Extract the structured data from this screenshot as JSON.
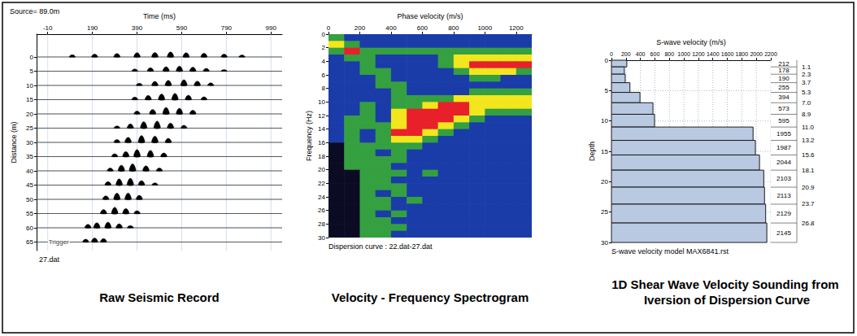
{
  "chart_data": [
    {
      "type": "wiggle",
      "title": "Raw Seismic Record",
      "xlabel": "Time (ms)",
      "ylabel": "Distance (m)",
      "annotations": [
        {
          "text": "Source= 89.0m"
        },
        {
          "text": "Trigger",
          "x": -10,
          "y": 65
        },
        {
          "text": "27.dat"
        }
      ],
      "xlim": [
        -60,
        1040
      ],
      "xticks": [
        -10,
        190,
        390,
        590,
        790,
        990
      ],
      "ylim": [
        -8,
        68
      ],
      "yticks": [
        0,
        5,
        10,
        15,
        20,
        25,
        30,
        35,
        40,
        45,
        50,
        55,
        60,
        65
      ],
      "grid": true,
      "color": "#000000",
      "traces": [
        {
          "distance": 0,
          "peaks": [
            [
              100,
              0.8
            ],
            [
              200,
              1
            ],
            [
              300,
              1.2
            ],
            [
              390,
              1.5
            ],
            [
              470,
              1.6
            ],
            [
              540,
              1.8
            ],
            [
              610,
              1.5
            ],
            [
              690,
              1.3
            ],
            [
              780,
              1
            ],
            [
              860,
              0.7
            ]
          ]
        },
        {
          "distance": 5,
          "peaks": [
            [
              380,
              0.8
            ],
            [
              450,
              1.2
            ],
            [
              520,
              1.6
            ],
            [
              580,
              1.8
            ],
            [
              640,
              1.4
            ],
            [
              700,
              1
            ],
            [
              780,
              0.6
            ]
          ]
        },
        {
          "distance": 10,
          "peaks": [
            [
              400,
              0.8
            ],
            [
              470,
              1.4
            ],
            [
              530,
              1.8
            ],
            [
              600,
              2
            ],
            [
              660,
              1.5
            ],
            [
              720,
              0.9
            ]
          ]
        },
        {
          "distance": 15,
          "peaks": [
            [
              380,
              0.9
            ],
            [
              440,
              1.5
            ],
            [
              500,
              2
            ],
            [
              560,
              2.2
            ],
            [
              620,
              1.6
            ],
            [
              690,
              1
            ]
          ]
        },
        {
          "distance": 20,
          "peaks": [
            [
              390,
              1
            ],
            [
              460,
              1.6
            ],
            [
              520,
              2.3
            ],
            [
              580,
              2
            ],
            [
              640,
              1.3
            ]
          ]
        },
        {
          "distance": 25,
          "peaks": [
            [
              300,
              0.8
            ],
            [
              360,
              1.5
            ],
            [
              420,
              2.3
            ],
            [
              480,
              2.5
            ],
            [
              540,
              1.8
            ],
            [
              600,
              1
            ]
          ]
        },
        {
          "distance": 30,
          "peaks": [
            [
              300,
              1
            ],
            [
              350,
              1.8
            ],
            [
              410,
              2.4
            ],
            [
              470,
              2.2
            ],
            [
              530,
              1.4
            ]
          ]
        },
        {
          "distance": 35,
          "peaks": [
            [
              290,
              1
            ],
            [
              340,
              1.8
            ],
            [
              390,
              2.5
            ],
            [
              450,
              2.2
            ],
            [
              510,
              1.3
            ]
          ]
        },
        {
          "distance": 40,
          "peaks": [
            [
              270,
              1
            ],
            [
              320,
              2
            ],
            [
              370,
              2.5
            ],
            [
              430,
              1.8
            ],
            [
              490,
              1
            ]
          ]
        },
        {
          "distance": 45,
          "peaks": [
            [
              260,
              1.2
            ],
            [
              310,
              2.2
            ],
            [
              360,
              2.4
            ],
            [
              410,
              1.6
            ],
            [
              470,
              0.8
            ]
          ]
        },
        {
          "distance": 50,
          "peaks": [
            [
              250,
              1.2
            ],
            [
              300,
              2.2
            ],
            [
              350,
              2.2
            ],
            [
              400,
              1.4
            ]
          ]
        },
        {
          "distance": 55,
          "peaks": [
            [
              240,
              1.4
            ],
            [
              290,
              2.2
            ],
            [
              340,
              1.8
            ],
            [
              390,
              1
            ]
          ]
        },
        {
          "distance": 60,
          "peaks": [
            [
              170,
              1.2
            ],
            [
              210,
              1.8
            ],
            [
              260,
              2
            ],
            [
              310,
              1.4
            ],
            [
              360,
              0.8
            ]
          ]
        },
        {
          "distance": 65,
          "peaks": [
            [
              160,
              1
            ],
            [
              200,
              1.4
            ],
            [
              240,
              1.2
            ]
          ]
        }
      ]
    },
    {
      "type": "heatmap",
      "title": "Velocity - Frequency Spectrogram",
      "xlabel": "Phase velocity (m/s)",
      "ylabel": "Frequency (Hz)",
      "annotations": [
        {
          "text": "Dispersion curve : 22.dat-27.dat"
        }
      ],
      "xlim": [
        0,
        1300
      ],
      "xticks": [
        0,
        200,
        400,
        600,
        800,
        1000,
        1200
      ],
      "ylim": [
        0,
        30
      ],
      "yticks": [
        0,
        2,
        4,
        6,
        8,
        10,
        12,
        14,
        16,
        18,
        20,
        22,
        24,
        26,
        28,
        30
      ],
      "x_bins": [
        0,
        100,
        200,
        300,
        400,
        500,
        600,
        700,
        800,
        900,
        1000,
        1100,
        1200,
        1300
      ],
      "y_bins": [
        0,
        1,
        2,
        3,
        4,
        5,
        6,
        7,
        8,
        9,
        10,
        11,
        12,
        13,
        14,
        15,
        16,
        17,
        18,
        19,
        20,
        21,
        22,
        23,
        24,
        25,
        26,
        27,
        28,
        29,
        30
      ],
      "color_range": [
        0,
        4
      ],
      "colors": [
        "#0b0b24",
        "#1a3ca8",
        "#35a040",
        "#f4e61c",
        "#e8202a"
      ],
      "cells": [
        [
          2,
          1,
          1,
          1,
          1,
          1,
          1,
          1,
          1,
          1,
          1,
          1,
          1
        ],
        [
          3,
          2,
          1,
          1,
          1,
          1,
          1,
          1,
          1,
          1,
          1,
          1,
          1
        ],
        [
          2,
          4,
          2,
          2,
          2,
          2,
          2,
          2,
          2,
          2,
          2,
          2,
          2
        ],
        [
          1,
          2,
          2,
          1,
          1,
          1,
          1,
          2,
          3,
          3,
          3,
          3,
          3
        ],
        [
          1,
          1,
          2,
          1,
          1,
          1,
          1,
          2,
          3,
          4,
          4,
          4,
          4
        ],
        [
          1,
          1,
          2,
          2,
          1,
          1,
          1,
          1,
          2,
          3,
          3,
          3,
          2
        ],
        [
          1,
          1,
          1,
          2,
          1,
          1,
          1,
          1,
          1,
          2,
          2,
          1,
          1
        ],
        [
          1,
          1,
          1,
          2,
          2,
          1,
          1,
          1,
          1,
          1,
          1,
          1,
          1
        ],
        [
          1,
          1,
          1,
          1,
          2,
          1,
          1,
          1,
          1,
          2,
          2,
          2,
          2
        ],
        [
          1,
          1,
          1,
          1,
          2,
          2,
          2,
          2,
          3,
          3,
          3,
          3,
          3
        ],
        [
          1,
          1,
          2,
          1,
          2,
          2,
          3,
          4,
          4,
          3,
          3,
          3,
          3
        ],
        [
          1,
          1,
          2,
          1,
          3,
          4,
          4,
          4,
          4,
          3,
          2,
          2,
          2
        ],
        [
          1,
          2,
          2,
          1,
          3,
          4,
          4,
          4,
          3,
          2,
          1,
          1,
          1
        ],
        [
          1,
          2,
          2,
          2,
          3,
          4,
          4,
          3,
          2,
          1,
          1,
          1,
          1
        ],
        [
          1,
          2,
          1,
          2,
          4,
          4,
          3,
          2,
          1,
          1,
          1,
          1,
          1
        ],
        [
          1,
          2,
          1,
          2,
          3,
          3,
          2,
          1,
          1,
          1,
          1,
          1,
          1
        ],
        [
          0,
          2,
          2,
          2,
          2,
          2,
          1,
          1,
          1,
          1,
          1,
          1,
          1
        ],
        [
          0,
          2,
          2,
          1,
          2,
          1,
          1,
          1,
          1,
          1,
          1,
          1,
          1
        ],
        [
          0,
          2,
          2,
          2,
          2,
          1,
          1,
          1,
          1,
          1,
          1,
          1,
          1
        ],
        [
          0,
          2,
          2,
          2,
          1,
          1,
          1,
          1,
          1,
          1,
          1,
          1,
          1
        ],
        [
          0,
          0,
          2,
          2,
          2,
          1,
          2,
          1,
          1,
          1,
          1,
          1,
          1
        ],
        [
          0,
          0,
          2,
          2,
          1,
          1,
          1,
          1,
          1,
          1,
          1,
          1,
          1
        ],
        [
          0,
          0,
          2,
          2,
          2,
          1,
          1,
          1,
          1,
          1,
          1,
          1,
          1
        ],
        [
          0,
          0,
          2,
          1,
          2,
          1,
          1,
          1,
          1,
          1,
          1,
          1,
          1
        ],
        [
          0,
          0,
          2,
          2,
          1,
          2,
          1,
          1,
          1,
          1,
          1,
          1,
          1
        ],
        [
          0,
          0,
          2,
          2,
          1,
          1,
          1,
          1,
          1,
          1,
          1,
          1,
          1
        ],
        [
          0,
          0,
          2,
          1,
          2,
          1,
          1,
          1,
          1,
          1,
          1,
          1,
          1
        ],
        [
          0,
          0,
          2,
          2,
          1,
          1,
          1,
          1,
          1,
          1,
          1,
          1,
          1
        ],
        [
          0,
          0,
          2,
          2,
          2,
          1,
          1,
          1,
          1,
          1,
          1,
          1,
          1
        ],
        [
          0,
          0,
          2,
          2,
          1,
          1,
          1,
          1,
          1,
          1,
          1,
          1,
          1
        ]
      ]
    },
    {
      "type": "step_bar",
      "orientation": "horizontal",
      "title": "1D Shear Wave Velocity Sounding from Iversion of Dispersion Curve",
      "xlabel": "S-wave velocity (m/s)",
      "ylabel": "Depth",
      "annotations": [
        {
          "text": "S-wave velocity model MAX6841.rst"
        }
      ],
      "xlim": [
        0,
        2200
      ],
      "xticks": [
        0,
        200,
        400,
        600,
        800,
        1000,
        1200,
        1400,
        1600,
        1800,
        2000,
        2200
      ],
      "ylim": [
        0,
        30
      ],
      "yticks": [
        0,
        5,
        10,
        15,
        20,
        25,
        30
      ],
      "grid": true,
      "color": "#b9c9e2",
      "data_labels": true,
      "values": [
        212,
        178,
        190,
        255,
        394,
        573,
        595,
        1955,
        1987,
        2044,
        2103,
        2113,
        2129,
        2145
      ],
      "boundaries": [
        1.1,
        2.3,
        3.7,
        5.3,
        7,
        8.9,
        11,
        13.2,
        15.6,
        18.1,
        20.9,
        23.7,
        26.8
      ],
      "boundary_labels": [
        "1.1",
        "2.3",
        "3.7",
        "5.3",
        "7.0",
        "8.9",
        "11.0",
        "13.2",
        "15.6",
        "18.1",
        "20.9",
        "23.7",
        "26.8"
      ]
    }
  ]
}
